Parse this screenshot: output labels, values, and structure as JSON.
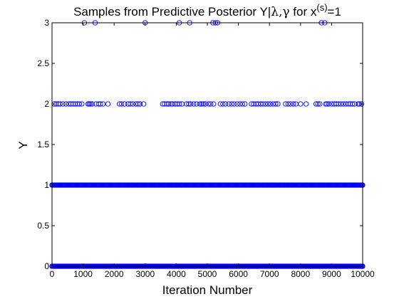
{
  "chart_data": {
    "type": "scatter",
    "title": {
      "main": "Samples from Predictive Posterior  Y|",
      "greek": "λ,γ",
      "suffix": " for x",
      "superscript": "(s)",
      "tail": "=1"
    },
    "xlabel": "Iteration Number",
    "ylabel": "Y",
    "xlim": [
      0,
      10000
    ],
    "ylim": [
      0,
      3
    ],
    "xticks": [
      0,
      1000,
      2000,
      3000,
      4000,
      5000,
      6000,
      7000,
      8000,
      9000,
      10000
    ],
    "xtick_labels": [
      "0",
      "1000",
      "2000",
      "3000",
      "4000",
      "5000",
      "6000",
      "7000",
      "8000",
      "9000",
      "10000"
    ],
    "yticks": [
      0,
      0.5,
      1,
      1.5,
      2,
      2.5,
      3
    ],
    "ytick_labels": [
      "0",
      "0.5",
      "1",
      "1.5",
      "2",
      "2.5",
      "3"
    ],
    "grid": false,
    "marker": "circle",
    "marker_color": "#0000ff",
    "series": [
      {
        "y": 0,
        "x_ranges": [
          [
            0,
            10000
          ]
        ],
        "density": "continuous"
      },
      {
        "y": 1,
        "x_ranges": [
          [
            0,
            10000
          ]
        ],
        "density": "continuous"
      },
      {
        "y": 2,
        "x": [
          70,
          130,
          200,
          260,
          350,
          450,
          540,
          610,
          680,
          750,
          820,
          880,
          960,
          1160,
          1200,
          1240,
          1290,
          1420,
          1500,
          1560,
          1640,
          1800,
          2170,
          2240,
          2330,
          2450,
          2520,
          2600,
          2700,
          2770,
          2830,
          2950,
          3560,
          3620,
          3700,
          3760,
          3830,
          3880,
          3960,
          4030,
          4100,
          4180,
          4330,
          4400,
          4460,
          4560,
          4650,
          4760,
          4820,
          4870,
          4940,
          5040,
          5110,
          5200,
          5420,
          5500,
          5580,
          5690,
          5780,
          5860,
          5960,
          6050,
          6130,
          6210,
          6420,
          6490,
          6570,
          6640,
          6720,
          6790,
          6870,
          6950,
          7030,
          7120,
          7200,
          7270,
          7520,
          7600,
          7680,
          7770,
          7850,
          8000,
          8180,
          8500,
          8560,
          8620,
          8810,
          8850,
          8910,
          9000,
          9080,
          9150,
          9220,
          9300,
          9380,
          9460,
          9540,
          9600,
          9670,
          9740,
          9860,
          9900,
          9960
        ]
      },
      {
        "y": 3,
        "x": [
          1040,
          1390,
          3000,
          4100,
          4430,
          5180,
          5260,
          5330,
          8670,
          8780
        ]
      }
    ]
  }
}
